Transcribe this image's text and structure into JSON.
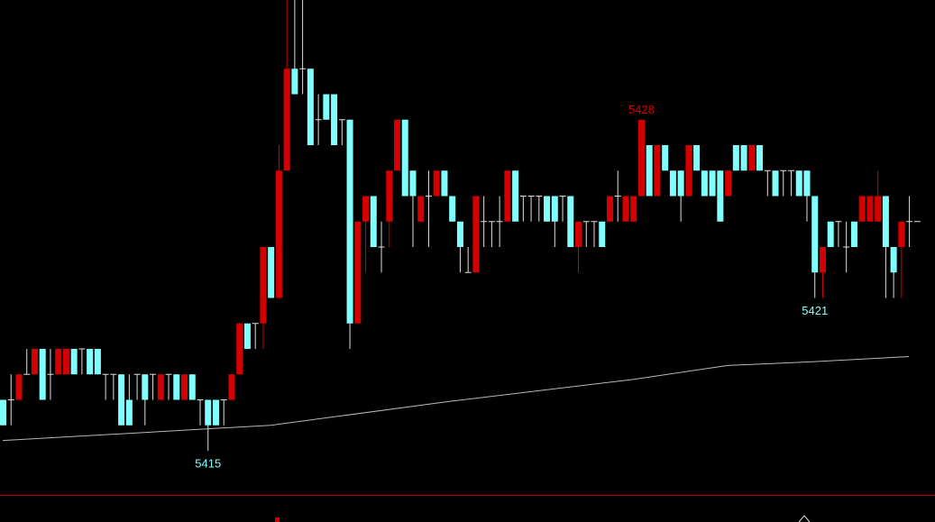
{
  "chart_data": {
    "type": "candlestick",
    "ylim": [
      5413.3,
      5432.7
    ],
    "up_color": "#d40000",
    "down_color": "#80ffff",
    "doji_color": "#e0e0e0",
    "open": [
      5417,
      5417,
      5417,
      5418,
      5418,
      5419,
      5418,
      5418,
      5418,
      5419,
      5419,
      5419,
      5419,
      5418,
      5418,
      5418,
      5417,
      5418,
      5418,
      5418,
      5417,
      5418,
      5418,
      5417,
      5418,
      5417,
      5417,
      5417,
      5417,
      5417,
      5418,
      5420,
      5420,
      5420,
      5423,
      5421,
      5426,
      5430,
      5430,
      5430,
      5428,
      5429,
      5429,
      5428,
      5428,
      5420,
      5424,
      5425,
      5423,
      5424,
      5426,
      5428,
      5426,
      5424,
      5425,
      5425,
      5426,
      5425,
      5424,
      5422,
      5422,
      5424,
      5424,
      5424,
      5424,
      5426,
      5425,
      5425,
      5425,
      5425,
      5425,
      5425,
      5425,
      5423,
      5424,
      5424,
      5424,
      5424,
      5425,
      5424,
      5424,
      5425,
      5427,
      5425,
      5427,
      5426,
      5426,
      5425,
      5427,
      5426,
      5426,
      5426,
      5425,
      5427,
      5427,
      5426,
      5427,
      5426,
      5426,
      5426,
      5426,
      5426,
      5426,
      5425,
      5422,
      5424,
      5424,
      5423,
      5424,
      5424,
      5424,
      5424,
      5425,
      5423,
      5423,
      5424,
      5424
    ],
    "high": [
      5417,
      5418,
      5418,
      5419,
      5419,
      5419,
      5419,
      5419,
      5419,
      5419,
      5419,
      5419,
      5419,
      5418,
      5418,
      5418,
      5418,
      5418,
      5418,
      5418,
      5418,
      5418,
      5418,
      5418,
      5418,
      5417,
      5417,
      5417,
      5417,
      5418,
      5420,
      5420,
      5420,
      5423,
      5423,
      5427,
      5433,
      5433,
      5433,
      5430,
      5429,
      5429,
      5429,
      5428,
      5428,
      5424,
      5425,
      5425,
      5424,
      5426,
      5428,
      5428,
      5426,
      5425,
      5426,
      5426,
      5426,
      5425,
      5424,
      5423,
      5425,
      5425,
      5424,
      5425,
      5426,
      5426,
      5425,
      5425,
      5425,
      5425,
      5425,
      5425,
      5425,
      5424,
      5424,
      5424,
      5424,
      5425,
      5426,
      5425,
      5425,
      5428,
      5427,
      5427,
      5427,
      5426,
      5426,
      5427,
      5427,
      5426,
      5426,
      5426,
      5426,
      5427,
      5427,
      5427,
      5427,
      5426,
      5426,
      5426,
      5426,
      5426,
      5426,
      5425,
      5423,
      5424,
      5424,
      5424,
      5424,
      5425,
      5425,
      5426,
      5425,
      5423,
      5424,
      5425,
      5424
    ],
    "low": [
      5416,
      5416,
      5417,
      5418,
      5418,
      5417,
      5417,
      5418,
      5418,
      5418,
      5418,
      5418,
      5418,
      5417,
      5417,
      5416,
      5416,
      5417,
      5416,
      5417,
      5417,
      5417,
      5417,
      5417,
      5417,
      5416,
      5415,
      5416,
      5416,
      5417,
      5418,
      5419,
      5419,
      5419,
      5421,
      5421,
      5426,
      5429,
      5429,
      5427,
      5427,
      5428,
      5427,
      5427,
      5419,
      5420,
      5422,
      5423,
      5422,
      5423,
      5426,
      5425,
      5423,
      5424,
      5423,
      5425,
      5425,
      5424,
      5422,
      5422,
      5422,
      5423,
      5423,
      5423,
      5424,
      5424,
      5424,
      5424,
      5424,
      5424,
      5423,
      5424,
      5423,
      5422,
      5423,
      5423,
      5423,
      5424,
      5424,
      5424,
      5424,
      5425,
      5425,
      5425,
      5426,
      5425,
      5424,
      5425,
      5426,
      5425,
      5425,
      5424,
      5425,
      5426,
      5426,
      5426,
      5426,
      5425,
      5425,
      5425,
      5425,
      5425,
      5424,
      5421,
      5421,
      5423,
      5423,
      5422,
      5423,
      5424,
      5424,
      5424,
      5421,
      5421,
      5421,
      5423,
      5424
    ],
    "close": [
      5416,
      5417,
      5418,
      5418,
      5419,
      5417,
      5418,
      5419,
      5419,
      5418,
      5419,
      5418,
      5418,
      5418,
      5418,
      5416,
      5416,
      5418,
      5417,
      5418,
      5418,
      5418,
      5417,
      5418,
      5417,
      5417,
      5416,
      5416,
      5417,
      5418,
      5420,
      5419,
      5420,
      5423,
      5421,
      5426,
      5430,
      5429,
      5430,
      5427,
      5428,
      5428,
      5427,
      5428,
      5420,
      5424,
      5425,
      5423,
      5423,
      5426,
      5428,
      5425,
      5425,
      5425,
      5425,
      5426,
      5425,
      5424,
      5423,
      5422,
      5425,
      5424,
      5424,
      5424,
      5426,
      5424,
      5425,
      5425,
      5425,
      5424,
      5424,
      5425,
      5423,
      5424,
      5424,
      5424,
      5423,
      5425,
      5425,
      5425,
      5425,
      5428,
      5425,
      5427,
      5426,
      5425,
      5425,
      5427,
      5426,
      5425,
      5425,
      5424,
      5426,
      5426,
      5426,
      5427,
      5426,
      5426,
      5425,
      5426,
      5426,
      5425,
      5425,
      5422,
      5423,
      5423,
      5424,
      5423,
      5423,
      5425,
      5425,
      5425,
      5423,
      5422,
      5424,
      5424,
      5424
    ],
    "ma": {
      "color": "#b8b8b8",
      "x": [
        0,
        34,
        57,
        80,
        92,
        103,
        115
      ],
      "values": [
        5415.4,
        5416,
        5416.95,
        5417.8,
        5418.35,
        5418.5,
        5418.7
      ]
    },
    "annotations": [
      {
        "value": 5415,
        "index": 26,
        "position": "below",
        "color": "#80ffff"
      },
      {
        "value": 5428,
        "index": 81,
        "position": "above",
        "color": "#d40000"
      },
      {
        "value": 5421,
        "index": 103,
        "position": "below",
        "color": "#80ffff"
      }
    ]
  }
}
